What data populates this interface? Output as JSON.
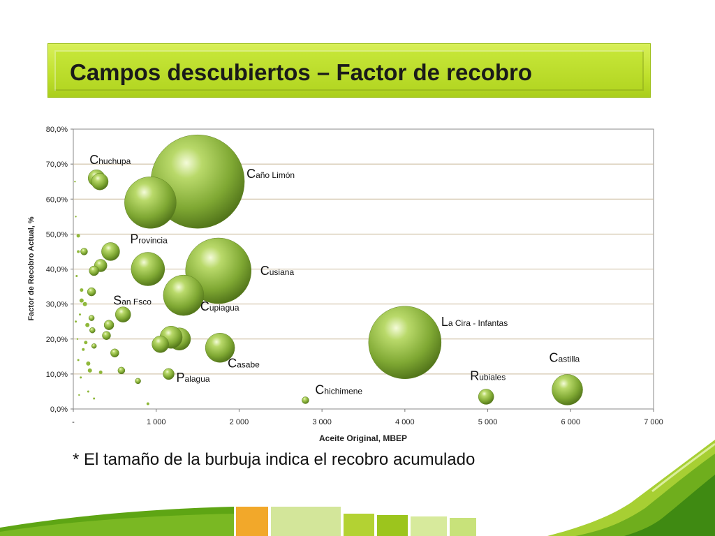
{
  "title": "Campos descubiertos – Factor de recobro",
  "footnote": "* El tamaño de la burbuja indica el recobro acumulado",
  "chart_data": {
    "type": "bubble",
    "xlabel": "Aceite Original, MBEP",
    "ylabel": "Factor de Recobro Actual, %",
    "xlim": [
      0,
      7000
    ],
    "ylim": [
      0,
      80
    ],
    "xticks": [
      {
        "v": 0,
        "label": "-"
      },
      {
        "v": 1000,
        "label": "1 000"
      },
      {
        "v": 2000,
        "label": "2 000"
      },
      {
        "v": 3000,
        "label": "3 000"
      },
      {
        "v": 4000,
        "label": "4 000"
      },
      {
        "v": 5000,
        "label": "5 000"
      },
      {
        "v": 6000,
        "label": "6 000"
      },
      {
        "v": 7000,
        "label": "7 000"
      }
    ],
    "yticks": [
      {
        "v": 0,
        "label": "0,0%"
      },
      {
        "v": 10,
        "label": "10,0%"
      },
      {
        "v": 20,
        "label": "20,0%"
      },
      {
        "v": 30,
        "label": "30,0%"
      },
      {
        "v": 40,
        "label": "40,0%"
      },
      {
        "v": 50,
        "label": "50,0%"
      },
      {
        "v": 60,
        "label": "60,0%"
      },
      {
        "v": 70,
        "label": "70,0%"
      },
      {
        "v": 80,
        "label": "80,0%"
      }
    ],
    "grid": true,
    "bubble_color": "#8fb83a",
    "points": [
      {
        "x": 1500,
        "y": 65,
        "r": 67,
        "label": "Caño Limón"
      },
      {
        "x": 930,
        "y": 59,
        "r": 37
      },
      {
        "x": 280,
        "y": 66,
        "r": 12,
        "label": "Chuchupa"
      },
      {
        "x": 320,
        "y": 65,
        "r": 12
      },
      {
        "x": 450,
        "y": 45,
        "r": 13,
        "label": "Provincia"
      },
      {
        "x": 900,
        "y": 40,
        "r": 24
      },
      {
        "x": 1750,
        "y": 39.5,
        "r": 47,
        "label": "Cusiana"
      },
      {
        "x": 1330,
        "y": 32.5,
        "r": 29,
        "label": "Cupiagua"
      },
      {
        "x": 600,
        "y": 27,
        "r": 11,
        "label": "San Fsco"
      },
      {
        "x": 1770,
        "y": 17.5,
        "r": 21,
        "label": "Casabe"
      },
      {
        "x": 1280,
        "y": 20,
        "r": 16
      },
      {
        "x": 1180,
        "y": 20.5,
        "r": 16
      },
      {
        "x": 1050,
        "y": 18.5,
        "r": 12
      },
      {
        "x": 1150,
        "y": 10,
        "r": 8,
        "label": "Palagua"
      },
      {
        "x": 4000,
        "y": 19,
        "r": 52,
        "label": "La Cira - Infantas"
      },
      {
        "x": 2800,
        "y": 2.5,
        "r": 5,
        "label": "Chichimene"
      },
      {
        "x": 4980,
        "y": 3.5,
        "r": 11,
        "label": "Rubiales"
      },
      {
        "x": 5960,
        "y": 5.5,
        "r": 22,
        "label": "Castilla"
      },
      {
        "x": 330,
        "y": 41,
        "r": 9
      },
      {
        "x": 250,
        "y": 39.5,
        "r": 7
      },
      {
        "x": 220,
        "y": 33.5,
        "r": 6
      },
      {
        "x": 130,
        "y": 45,
        "r": 5
      },
      {
        "x": 430,
        "y": 24,
        "r": 7
      },
      {
        "x": 400,
        "y": 21,
        "r": 6
      },
      {
        "x": 500,
        "y": 16,
        "r": 6
      },
      {
        "x": 580,
        "y": 11,
        "r": 5
      },
      {
        "x": 780,
        "y": 8,
        "r": 4
      },
      {
        "x": 900,
        "y": 1.5,
        "r": 2
      },
      {
        "x": 220,
        "y": 26,
        "r": 4
      },
      {
        "x": 230,
        "y": 22.5,
        "r": 4
      },
      {
        "x": 250,
        "y": 18,
        "r": 3.5
      },
      {
        "x": 170,
        "y": 24,
        "r": 3
      },
      {
        "x": 180,
        "y": 13,
        "r": 3
      },
      {
        "x": 200,
        "y": 11,
        "r": 3
      },
      {
        "x": 330,
        "y": 10.5,
        "r": 2.5
      },
      {
        "x": 100,
        "y": 31,
        "r": 3
      },
      {
        "x": 140,
        "y": 30,
        "r": 3
      },
      {
        "x": 100,
        "y": 34,
        "r": 2.5
      },
      {
        "x": 150,
        "y": 19,
        "r": 2.5
      },
      {
        "x": 60,
        "y": 49.5,
        "r": 2.5
      },
      {
        "x": 60,
        "y": 45,
        "r": 2
      },
      {
        "x": 120,
        "y": 17,
        "r": 2
      },
      {
        "x": 80,
        "y": 27,
        "r": 1.5
      },
      {
        "x": 60,
        "y": 14,
        "r": 1.5
      },
      {
        "x": 90,
        "y": 9,
        "r": 1.5
      },
      {
        "x": 40,
        "y": 38,
        "r": 1.5
      },
      {
        "x": 30,
        "y": 25,
        "r": 1.5
      },
      {
        "x": 180,
        "y": 5,
        "r": 1.5
      },
      {
        "x": 250,
        "y": 3,
        "r": 1.5
      },
      {
        "x": 20,
        "y": 65,
        "r": 1.2
      },
      {
        "x": 30,
        "y": 55,
        "r": 1.2
      },
      {
        "x": 50,
        "y": 20,
        "r": 1.2
      },
      {
        "x": 70,
        "y": 4,
        "r": 1.2
      }
    ]
  }
}
